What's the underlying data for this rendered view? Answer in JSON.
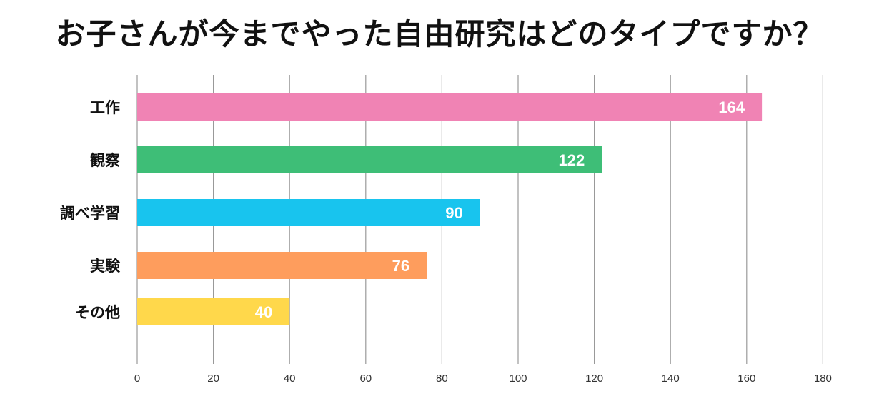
{
  "title": "お子さんが今までやった自由研究はどのタイプですか？",
  "chart_data": {
    "type": "bar",
    "orientation": "horizontal",
    "title": "お子さんが今までやった自由研究はどのタイプですか？",
    "categories": [
      "工作",
      "観察",
      "調べ学習",
      "実験",
      "その他"
    ],
    "values": [
      164,
      122,
      90,
      76,
      40
    ],
    "colors": [
      "#f083b4",
      "#3ebe77",
      "#18c4ee",
      "#fe9d5d",
      "#ffd84b"
    ],
    "xlim": [
      0,
      180
    ],
    "x_ticks": [
      0,
      20,
      40,
      60,
      80,
      100,
      120,
      140,
      160,
      180
    ],
    "xlabel": "",
    "ylabel": "",
    "grid": true,
    "data_labels": true,
    "gridline_color": "#999999"
  }
}
